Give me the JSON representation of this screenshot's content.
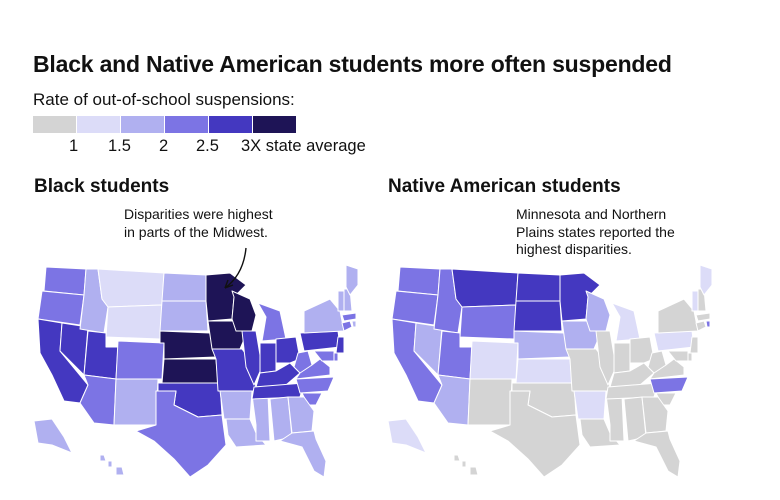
{
  "title": "Black and Native American students more often suspended",
  "legend": {
    "label": "Rate of out-of-school suspensions:",
    "colors": [
      "#d4d4d4",
      "#dcdcf8",
      "#b0b0f0",
      "#7c74e4",
      "#4438c0",
      "#1e1456"
    ],
    "ticks": [
      "1",
      "1.5",
      "2",
      "2.5",
      "3X state average"
    ]
  },
  "panels": [
    {
      "title": "Black students",
      "annotation": "Disparities were highest\nin parts of the Midwest.",
      "states": {
        "WA": 3,
        "OR": 3,
        "CA": 4,
        "NV": 4,
        "ID": 2,
        "MT": 1,
        "WY": 1,
        "UT": 4,
        "AZ": 3,
        "CO": 3,
        "NM": 2,
        "ND": 2,
        "SD": 2,
        "NE": 5,
        "KS": 5,
        "OK": 4,
        "TX": 3,
        "MN": 5,
        "IA": 5,
        "MO": 4,
        "AR": 2,
        "LA": 2,
        "WI": 5,
        "IL": 4,
        "MS": 2,
        "MI": 3,
        "IN": 4,
        "KY": 4,
        "TN": 4,
        "AL": 2,
        "OH": 4,
        "WV": 3,
        "VA": 3,
        "NC": 3,
        "SC": 3,
        "GA": 2,
        "FL": 2,
        "PA": 4,
        "NY": 2,
        "NJ": 4,
        "DE": 3,
        "MD": 3,
        "CT": 3,
        "MA": 3,
        "RI": 2,
        "VT": 2,
        "NH": 2,
        "ME": 2,
        "AK": 2,
        "HI": 2
      }
    },
    {
      "title": "Native American students",
      "annotation": "Minnesota and Northern\nPlains states reported the\nhighest disparities.",
      "states": {
        "WA": 3,
        "OR": 3,
        "CA": 3,
        "NV": 2,
        "ID": 3,
        "MT": 4,
        "WY": 3,
        "UT": 3,
        "AZ": 2,
        "CO": 1,
        "NM": 0,
        "ND": 4,
        "SD": 4,
        "NE": 2,
        "KS": 1,
        "OK": 0,
        "TX": 0,
        "MN": 4,
        "IA": 2,
        "MO": 0,
        "AR": 1,
        "LA": 0,
        "WI": 2,
        "IL": 0,
        "MS": 0,
        "MI": 1,
        "IN": 0,
        "KY": 0,
        "TN": 0,
        "AL": 0,
        "OH": 0,
        "WV": 0,
        "VA": 0,
        "NC": 3,
        "SC": 0,
        "GA": 0,
        "FL": 0,
        "PA": 1,
        "NY": 0,
        "NJ": 0,
        "DE": 0,
        "MD": 0,
        "CT": 0,
        "MA": 0,
        "RI": 3,
        "VT": 1,
        "NH": 0,
        "ME": 1,
        "AK": 1,
        "HI": 0
      }
    }
  ]
}
